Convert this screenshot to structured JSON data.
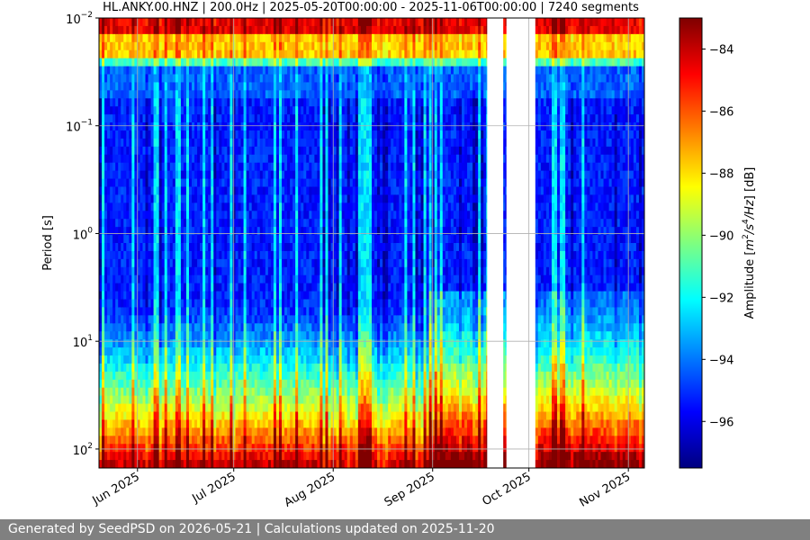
{
  "chart_data": {
    "type": "heatmap",
    "title": "HL.ANKY.00.HNZ | 200.0Hz | 2025-05-20T00:00:00 - 2025-11-06T00:00:00 | 7240 segments",
    "ylabel": "Period [s]",
    "y_scale": "log",
    "y_inverted": true,
    "ylim": [
      0.01,
      150
    ],
    "y_ticks": [
      {
        "value": 0.01,
        "base": "10",
        "exp": "−2"
      },
      {
        "value": 0.1,
        "base": "10",
        "exp": "−1"
      },
      {
        "value": 1,
        "base": "10",
        "exp": "0"
      },
      {
        "value": 10,
        "base": "10",
        "exp": "1"
      },
      {
        "value": 100,
        "base": "10",
        "exp": "2"
      }
    ],
    "xlim": [
      "2025-05-20",
      "2025-11-06"
    ],
    "x_ticks": [
      {
        "date": "2025-06-01",
        "label": "Jun 2025"
      },
      {
        "date": "2025-07-01",
        "label": "Jul 2025"
      },
      {
        "date": "2025-08-01",
        "label": "Aug 2025"
      },
      {
        "date": "2025-09-01",
        "label": "Sep 2025"
      },
      {
        "date": "2025-10-01",
        "label": "Oct 2025"
      },
      {
        "date": "2025-11-01",
        "label": "Nov 2025"
      }
    ],
    "data_gaps": [
      {
        "start": "2025-09-18",
        "end": "2025-09-23"
      },
      {
        "start": "2025-09-24",
        "end": "2025-10-03"
      }
    ],
    "grid": true,
    "colorbar": {
      "label_parts": [
        "Amplitude [",
        "m",
        "2",
        "/",
        "s",
        "4",
        "/",
        "Hz",
        "] [dB]"
      ],
      "range": [
        -97.5,
        -83
      ],
      "ticks": [
        -84,
        -86,
        -88,
        -90,
        -92,
        -94,
        -96
      ],
      "colormap": "jet"
    }
  },
  "footer": {
    "text": "Generated by SeedPSD on 2026-05-21 | Calculations updated on 2025-11-20"
  }
}
